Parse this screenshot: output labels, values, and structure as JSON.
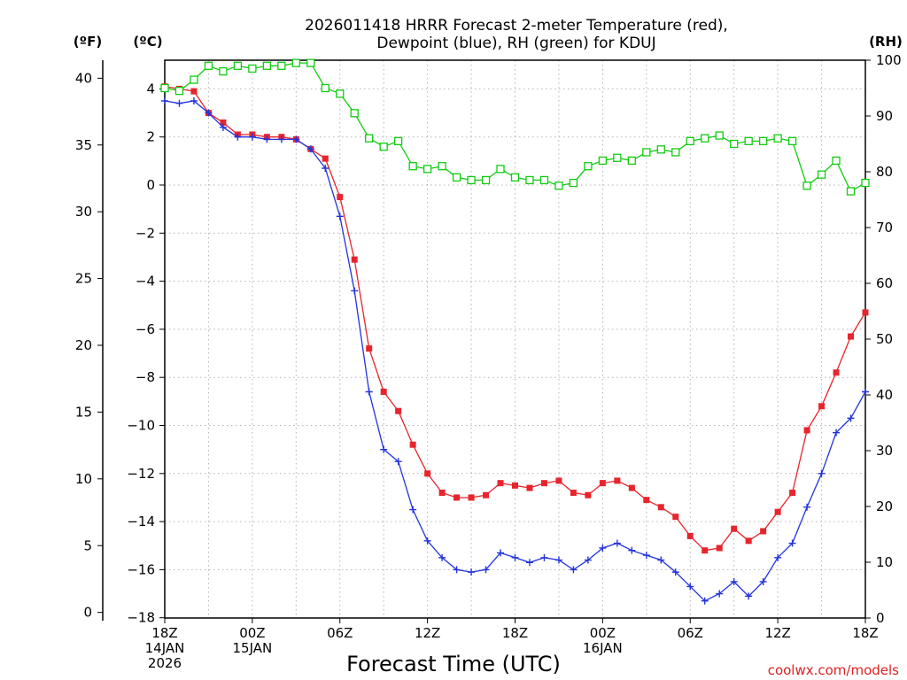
{
  "chart_data": {
    "type": "line",
    "title_line1": "2026011418 HRRR Forecast 2-meter Temperature (red),",
    "title_line2": "Dewpoint (blue), RH (green) for KDUJ",
    "xlabel": "Forecast Time (UTC)",
    "credit": "coolwx.com/models",
    "unit_labels": {
      "fahrenheit": "(ºF)",
      "celsius": "(ºC)",
      "rh": "(RH)"
    },
    "x_range_hours": [
      0,
      48
    ],
    "x_ticks": [
      {
        "h": 0,
        "lines": [
          "18Z",
          "14JAN",
          "2026"
        ]
      },
      {
        "h": 6,
        "lines": [
          "00Z",
          "15JAN"
        ]
      },
      {
        "h": 12,
        "lines": [
          "06Z"
        ]
      },
      {
        "h": 18,
        "lines": [
          "12Z"
        ]
      },
      {
        "h": 24,
        "lines": [
          "18Z"
        ]
      },
      {
        "h": 30,
        "lines": [
          "00Z",
          "16JAN"
        ]
      },
      {
        "h": 36,
        "lines": [
          "06Z"
        ]
      },
      {
        "h": 42,
        "lines": [
          "12Z"
        ]
      },
      {
        "h": 48,
        "lines": [
          "18Z"
        ]
      }
    ],
    "celsius_axis": {
      "range": [
        -18.5,
        5
      ],
      "ticks": [
        4,
        2,
        0,
        -2,
        -4,
        -6,
        -8,
        -10,
        -12,
        -14,
        -16,
        -18
      ]
    },
    "fahrenheit_axis": {
      "ticks": [
        40,
        35,
        30,
        25,
        20,
        15,
        10,
        5,
        0
      ]
    },
    "rh_axis": {
      "range": [
        0,
        100
      ],
      "ticks": [
        100,
        90,
        80,
        70,
        60,
        50,
        40,
        30,
        20,
        10,
        0
      ]
    },
    "series": [
      {
        "name": "Temperature",
        "unit": "C",
        "color": "#e8242c",
        "marker": "square-filled",
        "values": [
          4.1,
          4.0,
          3.9,
          3.0,
          2.6,
          2.1,
          2.1,
          2.0,
          2.0,
          1.9,
          1.5,
          1.1,
          -0.5,
          -3.1,
          -6.8,
          -8.6,
          -9.4,
          -10.8,
          -12.0,
          -12.8,
          -13.0,
          -13.0,
          -12.9,
          -12.4,
          -12.5,
          -12.6,
          -12.4,
          -12.3,
          -12.8,
          -12.9,
          -12.4,
          -12.3,
          -12.6,
          -13.1,
          -13.4,
          -13.8,
          -14.6,
          -15.2,
          -15.1,
          -14.3,
          -14.8,
          -14.4,
          -13.6,
          -12.8,
          -10.2,
          -9.2,
          -7.8,
          -6.3,
          -5.3
        ]
      },
      {
        "name": "Dewpoint",
        "unit": "C",
        "color": "#2233dd",
        "marker": "plus",
        "values": [
          3.5,
          3.4,
          3.5,
          3.0,
          2.4,
          2.0,
          2.0,
          1.9,
          1.9,
          1.9,
          1.5,
          0.7,
          -1.3,
          -4.4,
          -8.6,
          -11.0,
          -11.5,
          -13.5,
          -14.8,
          -15.5,
          -16.0,
          -16.1,
          -16.0,
          -15.3,
          -15.5,
          -15.7,
          -15.5,
          -15.6,
          -16.0,
          -15.6,
          -15.1,
          -14.9,
          -15.2,
          -15.4,
          -15.6,
          -16.1,
          -16.7,
          -17.3,
          -17.0,
          -16.5,
          -17.1,
          -16.5,
          -15.5,
          -14.9,
          -13.4,
          -12.0,
          -10.3,
          -9.7,
          -8.6
        ]
      },
      {
        "name": "RH",
        "unit": "%",
        "color": "#11cc11",
        "marker": "square-open",
        "values": [
          95,
          94.5,
          96.5,
          99,
          98,
          99,
          98.5,
          99,
          99,
          99.5,
          99.5,
          95,
          94,
          90.5,
          86,
          84.5,
          85.5,
          81,
          80.5,
          81,
          79,
          78.5,
          78.5,
          80.5,
          79,
          78.5,
          78.5,
          77.5,
          78,
          81,
          82,
          82.5,
          82,
          83.5,
          84,
          83.5,
          85.5,
          86,
          86.5,
          85,
          85.5,
          85.5,
          86,
          85.5,
          77.5,
          79.5,
          82,
          76.5,
          78
        ]
      }
    ]
  }
}
